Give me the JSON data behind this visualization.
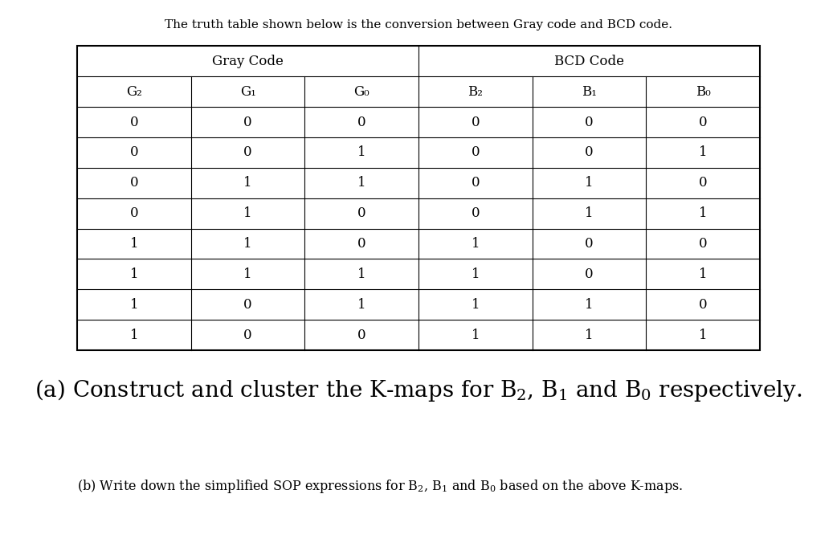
{
  "intro_text": "The truth table shown below is the conversion between Gray code and BCD code.",
  "group_headers": [
    "Gray Code",
    "BCD Code"
  ],
  "col_headers": [
    "G₂",
    "G₁",
    "G₀",
    "B₂",
    "B₁",
    "B₀"
  ],
  "table_data": [
    [
      0,
      0,
      0,
      0,
      0,
      0
    ],
    [
      0,
      0,
      1,
      0,
      0,
      1
    ],
    [
      0,
      1,
      1,
      0,
      1,
      0
    ],
    [
      0,
      1,
      0,
      0,
      1,
      1
    ],
    [
      1,
      1,
      0,
      1,
      0,
      0
    ],
    [
      1,
      1,
      1,
      1,
      0,
      1
    ],
    [
      1,
      0,
      1,
      1,
      1,
      0
    ],
    [
      1,
      0,
      0,
      1,
      1,
      1
    ]
  ],
  "background_color": "#ffffff",
  "text_color": "#000000",
  "line_color": "#000000",
  "intro_fontsize": 11,
  "group_header_fontsize": 12,
  "col_header_fontsize": 12,
  "cell_fontsize": 12,
  "part_a_fontsize": 20,
  "part_b_fontsize": 11.5,
  "tl": 0.025,
  "tr": 0.975,
  "tt": 0.915,
  "tb": 0.355
}
